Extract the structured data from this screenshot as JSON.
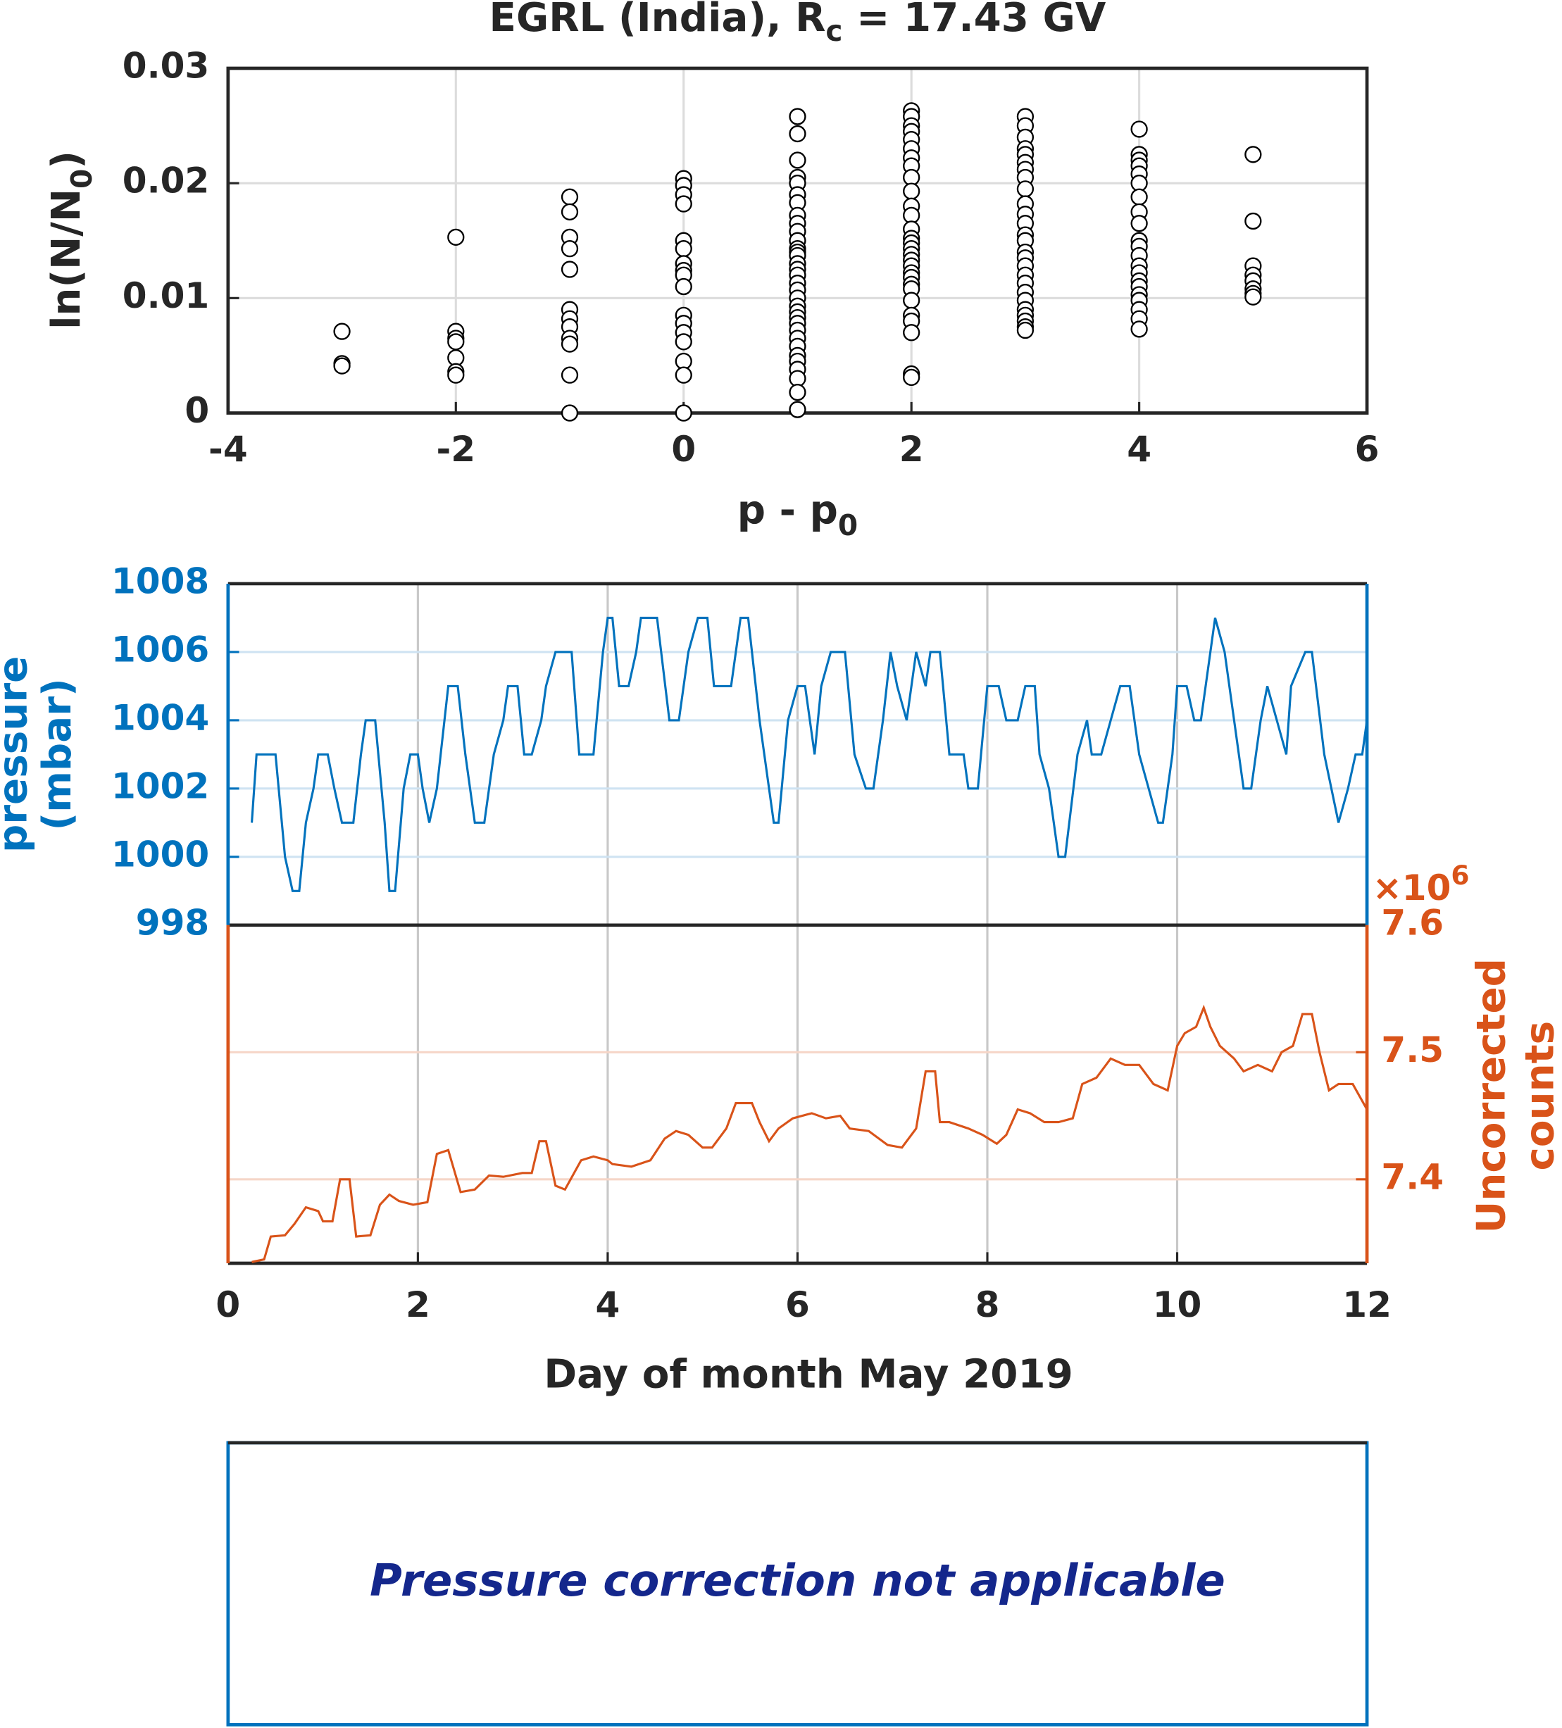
{
  "chart_data": [
    {
      "type": "scatter",
      "title": [
        "EGRL (India), R",
        "c",
        " = 17.43 GV"
      ],
      "xlabel": [
        "p - p",
        "0"
      ],
      "ylabel": [
        "ln(N/N",
        "0",
        ")"
      ],
      "xlim": [
        -4,
        6
      ],
      "xticks": [
        -4,
        -2,
        0,
        2,
        4,
        6
      ],
      "ylim": [
        0,
        0.03
      ],
      "yticks": [
        0,
        0.01,
        0.02,
        0.03
      ],
      "grid": true,
      "color": "#000000",
      "x": [
        -3,
        -3,
        -3,
        -2,
        -2,
        -2,
        -2,
        -2,
        -2,
        -2,
        -1,
        -1,
        -1,
        -1,
        -1,
        -1,
        -1,
        -1,
        -1,
        -1,
        -1,
        -1,
        0,
        0,
        0,
        0,
        0,
        0,
        0,
        0,
        0,
        0,
        0,
        0,
        0,
        0,
        0,
        0,
        0,
        1,
        1,
        1,
        1,
        1,
        1,
        1,
        1,
        1,
        1,
        1,
        1,
        1,
        1,
        1,
        1,
        1,
        1,
        1,
        1,
        1,
        1,
        1,
        1,
        1,
        1,
        1,
        1,
        1,
        1,
        1,
        1,
        1,
        2,
        2,
        2,
        2,
        2,
        2,
        2,
        2,
        2,
        2,
        2,
        2,
        2,
        2,
        2,
        2,
        2,
        2,
        2,
        2,
        2,
        2,
        2,
        2,
        2,
        2,
        2,
        2,
        2,
        3,
        3,
        3,
        3,
        3,
        3,
        3,
        3,
        3,
        3,
        3,
        3,
        3,
        3,
        3,
        3,
        3,
        3,
        3,
        3,
        3,
        3,
        3,
        3,
        3,
        3,
        4,
        4,
        4,
        4,
        4,
        4,
        4,
        4,
        4,
        4,
        4,
        4,
        4,
        4,
        4,
        4,
        4,
        4,
        4,
        4,
        4,
        5,
        5,
        5,
        5,
        5,
        5,
        5,
        5
      ],
      "values": [
        0.0071,
        0.0043,
        0.0041,
        0.0153,
        0.0071,
        0.0065,
        0.0062,
        0.0048,
        0.0036,
        0.0033,
        0.0188,
        0.0175,
        0.0153,
        0.0143,
        0.0125,
        0.009,
        0.0082,
        0.0075,
        0.0065,
        0.006,
        0.0033,
        0.0,
        0.0204,
        0.0198,
        0.019,
        0.0182,
        0.015,
        0.0143,
        0.013,
        0.0124,
        0.012,
        0.011,
        0.0085,
        0.0078,
        0.007,
        0.0062,
        0.0045,
        0.0033,
        0.0,
        0.0258,
        0.0243,
        0.022,
        0.0205,
        0.02,
        0.019,
        0.0183,
        0.0172,
        0.0165,
        0.0158,
        0.015,
        0.0143,
        0.014,
        0.0137,
        0.013,
        0.0125,
        0.012,
        0.0113,
        0.0107,
        0.01,
        0.0093,
        0.0088,
        0.0083,
        0.0078,
        0.0072,
        0.0065,
        0.0058,
        0.005,
        0.0045,
        0.0038,
        0.003,
        0.0018,
        0.0003,
        0.0263,
        0.0258,
        0.025,
        0.0245,
        0.0238,
        0.023,
        0.0222,
        0.0215,
        0.0205,
        0.0193,
        0.018,
        0.0172,
        0.016,
        0.0152,
        0.0148,
        0.0143,
        0.0138,
        0.0133,
        0.0128,
        0.0122,
        0.0118,
        0.0112,
        0.0108,
        0.0098,
        0.0085,
        0.008,
        0.007,
        0.0034,
        0.0031,
        0.0258,
        0.025,
        0.024,
        0.023,
        0.0225,
        0.0218,
        0.0212,
        0.0205,
        0.0195,
        0.0182,
        0.0173,
        0.0165,
        0.0155,
        0.015,
        0.014,
        0.0135,
        0.0128,
        0.012,
        0.0113,
        0.0105,
        0.0098,
        0.009,
        0.0085,
        0.008,
        0.0075,
        0.0072,
        0.0247,
        0.0225,
        0.022,
        0.0215,
        0.0208,
        0.02,
        0.0188,
        0.0175,
        0.0165,
        0.015,
        0.0145,
        0.0137,
        0.0128,
        0.0122,
        0.0115,
        0.011,
        0.0103,
        0.0098,
        0.009,
        0.0082,
        0.0073,
        0.0225,
        0.0167,
        0.0128,
        0.012,
        0.0115,
        0.0108,
        0.0104,
        0.0101
      ]
    },
    {
      "type": "line",
      "xlabel": "Day of month May 2019",
      "ylabel": [
        "pressure",
        "(mbar)"
      ],
      "y2label": [
        "Uncorrected",
        "counts"
      ],
      "y2multiplier": [
        "×10",
        "6"
      ],
      "xlim": [
        0,
        12
      ],
      "xticks": [
        0,
        2,
        4,
        6,
        8,
        10,
        12
      ],
      "ylim": [
        998,
        1008
      ],
      "yticks": [
        998,
        1000,
        1002,
        1004,
        1006,
        1008
      ],
      "y2lim": [
        7.334,
        7.6
      ],
      "y2ticks": [
        7.4,
        7.5,
        7.6
      ],
      "grid": true,
      "series": [
        {
          "color": "#0072bd",
          "axis": "y",
          "x": [
            0.25,
            0.3,
            0.5,
            0.6,
            0.68,
            0.75,
            0.82,
            0.9,
            0.95,
            1.05,
            1.12,
            1.2,
            1.32,
            1.4,
            1.45,
            1.55,
            1.65,
            1.7,
            1.76,
            1.85,
            1.92,
            2.0,
            2.05,
            2.12,
            2.2,
            2.32,
            2.42,
            2.5,
            2.6,
            2.7,
            2.8,
            2.9,
            2.95,
            3.05,
            3.12,
            3.2,
            3.3,
            3.35,
            3.45,
            3.62,
            3.7,
            3.85,
            3.95,
            4.0,
            4.05,
            4.12,
            4.22,
            4.3,
            4.35,
            4.52,
            4.65,
            4.75,
            4.85,
            4.95,
            5.05,
            5.12,
            5.3,
            5.4,
            5.48,
            5.6,
            5.75,
            5.8,
            5.9,
            6.0,
            6.08,
            6.18,
            6.25,
            6.35,
            6.5,
            6.6,
            6.72,
            6.8,
            6.9,
            6.98,
            7.05,
            7.15,
            7.25,
            7.35,
            7.4,
            7.5,
            7.6,
            7.75,
            7.8,
            7.9,
            8.0,
            8.12,
            8.2,
            8.32,
            8.4,
            8.5,
            8.55,
            8.65,
            8.75,
            8.82,
            8.95,
            9.05,
            9.1,
            9.2,
            9.3,
            9.4,
            9.5,
            9.6,
            9.7,
            9.8,
            9.85,
            9.95,
            10.0,
            10.1,
            10.18,
            10.25,
            10.35,
            10.4,
            10.5,
            10.6,
            10.7,
            10.78,
            10.88,
            10.95,
            11.05,
            11.15,
            11.2,
            11.35,
            11.42,
            11.55,
            11.7,
            11.8,
            11.88,
            11.95,
            12.0
          ],
          "values": [
            1001,
            1003,
            1003,
            1000,
            999,
            999,
            1001,
            1002,
            1003,
            1003,
            1002,
            1001,
            1001,
            1003,
            1004,
            1004,
            1001,
            999,
            999,
            1002,
            1003,
            1003,
            1002,
            1001,
            1002,
            1005,
            1005,
            1003,
            1001,
            1001,
            1003,
            1004,
            1005,
            1005,
            1003,
            1003,
            1004,
            1005,
            1006,
            1006,
            1003,
            1003,
            1006,
            1007,
            1007,
            1005,
            1005,
            1006,
            1007,
            1007,
            1004,
            1004,
            1006,
            1007,
            1007,
            1005,
            1005,
            1007,
            1007,
            1004,
            1001,
            1001,
            1004,
            1005,
            1005,
            1003,
            1005,
            1006,
            1006,
            1003,
            1002,
            1002,
            1004,
            1006,
            1005,
            1004,
            1006,
            1005,
            1006,
            1006,
            1003,
            1003,
            1002,
            1002,
            1005,
            1005,
            1004,
            1004,
            1005,
            1005,
            1003,
            1002,
            1000,
            1000,
            1003,
            1004,
            1003,
            1003,
            1004,
            1005,
            1005,
            1003,
            1002,
            1001,
            1001,
            1003,
            1005,
            1005,
            1004,
            1004,
            1006,
            1007,
            1006,
            1004,
            1002,
            1002,
            1004,
            1005,
            1004,
            1003,
            1005,
            1006,
            1006,
            1003,
            1001,
            1002,
            1003,
            1003,
            1004
          ]
        },
        {
          "color": "#d95319",
          "axis": "y2",
          "x": [
            0.25,
            0.38,
            0.45,
            0.6,
            0.7,
            0.82,
            0.95,
            1.0,
            1.1,
            1.18,
            1.28,
            1.35,
            1.5,
            1.6,
            1.7,
            1.8,
            1.95,
            2.1,
            2.2,
            2.32,
            2.45,
            2.6,
            2.75,
            2.9,
            3.1,
            3.2,
            3.28,
            3.35,
            3.45,
            3.55,
            3.72,
            3.85,
            4.0,
            4.05,
            4.25,
            4.45,
            4.6,
            4.72,
            4.85,
            5.0,
            5.1,
            5.25,
            5.35,
            5.52,
            5.6,
            5.7,
            5.8,
            5.95,
            6.15,
            6.3,
            6.45,
            6.55,
            6.75,
            6.95,
            7.1,
            7.25,
            7.35,
            7.45,
            7.5,
            7.6,
            7.8,
            7.95,
            8.1,
            8.2,
            8.32,
            8.45,
            8.6,
            8.75,
            8.9,
            9.0,
            9.15,
            9.3,
            9.45,
            9.6,
            9.75,
            9.9,
            10.0,
            10.08,
            10.2,
            10.28,
            10.35,
            10.45,
            10.6,
            10.7,
            10.85,
            11.0,
            11.1,
            11.22,
            11.32,
            11.42,
            11.5,
            11.6,
            11.7,
            11.85,
            12.0
          ],
          "values": [
            7.335,
            7.337,
            7.355,
            7.356,
            7.365,
            7.378,
            7.375,
            7.367,
            7.367,
            7.4,
            7.4,
            7.355,
            7.356,
            7.38,
            7.388,
            7.383,
            7.38,
            7.382,
            7.42,
            7.423,
            7.39,
            7.392,
            7.403,
            7.402,
            7.405,
            7.405,
            7.43,
            7.43,
            7.395,
            7.392,
            7.415,
            7.418,
            7.415,
            7.412,
            7.41,
            7.415,
            7.432,
            7.438,
            7.435,
            7.425,
            7.425,
            7.44,
            7.46,
            7.46,
            7.445,
            7.43,
            7.44,
            7.448,
            7.452,
            7.448,
            7.45,
            7.44,
            7.438,
            7.427,
            7.425,
            7.44,
            7.485,
            7.485,
            7.445,
            7.445,
            7.44,
            7.435,
            7.428,
            7.435,
            7.455,
            7.452,
            7.445,
            7.445,
            7.448,
            7.475,
            7.48,
            7.495,
            7.49,
            7.49,
            7.475,
            7.47,
            7.505,
            7.515,
            7.52,
            7.535,
            7.52,
            7.505,
            7.495,
            7.485,
            7.49,
            7.485,
            7.5,
            7.505,
            7.53,
            7.53,
            7.5,
            7.47,
            7.475,
            7.475,
            7.455
          ]
        }
      ]
    }
  ],
  "message": "Pressure correction not applicable"
}
